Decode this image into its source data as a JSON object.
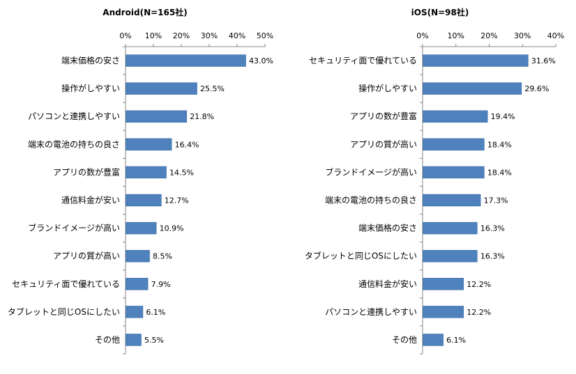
{
  "chart_data": [
    {
      "type": "bar",
      "orientation": "horizontal",
      "title": "Android(N=165社)",
      "categories": [
        "端末価格の安さ",
        "操作がしやすい",
        "パソコンと連携しやすい",
        "端末の電池の持ちの良さ",
        "アプリの数が豊富",
        "通信料金が安い",
        "ブランドイメージが高い",
        "アプリの質が高い",
        "セキュリティ面で優れている",
        "タブレットと同じOSにしたい",
        "その他"
      ],
      "values": [
        43.0,
        25.5,
        21.8,
        16.4,
        14.5,
        12.7,
        10.9,
        8.5,
        7.9,
        6.1,
        5.5
      ],
      "value_labels": [
        "43.0%",
        "25.5%",
        "21.8%",
        "16.4%",
        "14.5%",
        "12.7%",
        "10.9%",
        "8.5%",
        "7.9%",
        "6.1%",
        "5.5%"
      ],
      "xlim": [
        0,
        50
      ],
      "ticks": [
        0,
        10,
        20,
        30,
        40,
        50
      ],
      "tick_labels": [
        "0%",
        "10%",
        "20%",
        "30%",
        "40%",
        "50%"
      ],
      "color": "#4f81bd",
      "grid": false
    },
    {
      "type": "bar",
      "orientation": "horizontal",
      "title": "iOS(N=98社)",
      "categories": [
        "セキュリティ面で優れている",
        "操作がしやすい",
        "アプリの数が豊富",
        "アプリの質が高い",
        "ブランドイメージが高い",
        "端末の電池の持ちの良さ",
        "端末価格の安さ",
        "タブレットと同じOSにしたい",
        "通信料金が安い",
        "パソコンと連携しやすい",
        "その他"
      ],
      "values": [
        31.6,
        29.6,
        19.4,
        18.4,
        18.4,
        17.3,
        16.3,
        16.3,
        12.2,
        12.2,
        6.1
      ],
      "value_labels": [
        "31.6%",
        "29.6%",
        "19.4%",
        "18.4%",
        "18.4%",
        "17.3%",
        "16.3%",
        "16.3%",
        "12.2%",
        "12.2%",
        "6.1%"
      ],
      "xlim": [
        0,
        40
      ],
      "ticks": [
        0,
        10,
        20,
        30,
        40
      ],
      "tick_labels": [
        "0%",
        "10%",
        "20%",
        "30%",
        "40%"
      ],
      "color": "#4f81bd",
      "grid": false
    }
  ]
}
